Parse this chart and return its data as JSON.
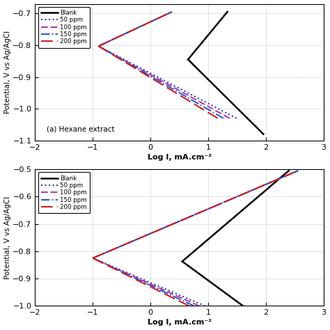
{
  "panel_a": {
    "title": "(a) Hexane extract",
    "ylabel": "Potential, V vs Ag/AgCl",
    "xlabel": "Log I, mA.cm⁻²",
    "ylim": [
      -1.1,
      -0.67
    ],
    "xlim": [
      -2,
      3
    ],
    "yticks": [
      -1.1,
      -1.0,
      -0.9,
      -0.8,
      -0.7
    ],
    "xticks": [
      -2,
      -1,
      0,
      1,
      2,
      3
    ],
    "blank": {
      "E_corr": -0.845,
      "log_icorr": 0.65,
      "ba": 0.22,
      "bc": 0.18,
      "E_min": -1.08,
      "E_max": -0.695
    },
    "inh_curves": [
      {
        "E_corr": -0.803,
        "log_icorr": -0.9,
        "ba": 0.085,
        "bc": 0.095,
        "E_min": -1.03,
        "E_max": -0.695
      },
      {
        "E_corr": -0.803,
        "log_icorr": -0.9,
        "ba": 0.085,
        "bc": 0.1,
        "E_min": -1.03,
        "E_max": -0.695
      },
      {
        "E_corr": -0.803,
        "log_icorr": -0.9,
        "ba": 0.085,
        "bc": 0.105,
        "E_min": -1.03,
        "E_max": -0.695
      },
      {
        "E_corr": -0.803,
        "log_icorr": -0.9,
        "ba": 0.085,
        "bc": 0.11,
        "E_min": -1.03,
        "E_max": -0.695
      }
    ]
  },
  "panel_b": {
    "title": null,
    "ylabel": "Potential, V vs Ag/AgCl",
    "xlabel": "Log I, mA.cm⁻²",
    "ylim": [
      -1.0,
      -0.5
    ],
    "xlim": [
      -2,
      3
    ],
    "yticks": [
      -1.0,
      -0.9,
      -0.8,
      -0.7,
      -0.6,
      -0.5
    ],
    "xticks": [
      -2,
      -1,
      0,
      1,
      2,
      3
    ],
    "blank": {
      "E_corr": -0.837,
      "log_icorr": 0.55,
      "ba": 0.18,
      "bc": 0.155,
      "E_min": -1.0,
      "E_max": -0.505
    },
    "inh_curves": [
      {
        "E_corr": -0.825,
        "log_icorr": -1.0,
        "ba": 0.09,
        "bc": 0.09,
        "E_min": -1.0,
        "E_max": -0.505
      },
      {
        "E_corr": -0.825,
        "log_icorr": -1.0,
        "ba": 0.09,
        "bc": 0.095,
        "E_min": -1.0,
        "E_max": -0.505
      },
      {
        "E_corr": -0.825,
        "log_icorr": -1.0,
        "ba": 0.09,
        "bc": 0.1,
        "E_min": -1.0,
        "E_max": -0.505
      },
      {
        "E_corr": -0.825,
        "log_icorr": -1.0,
        "ba": 0.09,
        "bc": 0.105,
        "E_min": -1.0,
        "E_max": -0.505
      }
    ]
  },
  "colors": [
    "#000000",
    "#3333bb",
    "#aa33aa",
    "#2255cc",
    "#cc2222"
  ],
  "labels": [
    "Blank",
    "50 ppm",
    "100 ppm",
    "150 ppm",
    "200 ppm"
  ],
  "linestyles_anodic": [
    "-",
    ":",
    "--",
    "-.",
    "--"
  ],
  "linestyles_cathodic": [
    "-",
    ":",
    "--",
    "-.",
    "--"
  ],
  "lwidths": [
    1.8,
    1.4,
    1.4,
    1.4,
    1.4
  ],
  "dot_density_50": 80
}
